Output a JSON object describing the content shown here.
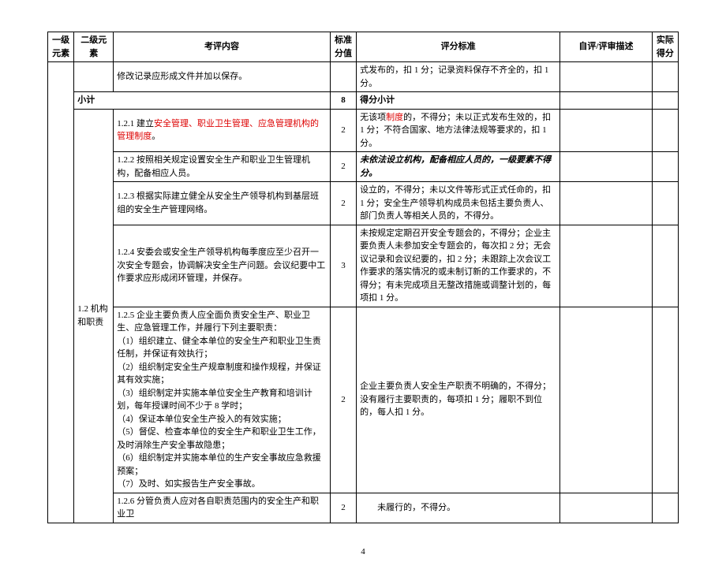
{
  "headers": {
    "l1": "一级元素",
    "l2": "二级元素",
    "content": "考评内容",
    "score": "标准分值",
    "criteria": "评分标准",
    "desc": "自评/评审描述",
    "actual": "实际得分"
  },
  "row_top": {
    "content": "修改记录应形成文件并加以保存。",
    "criteria": "式发布的，扣 1 分；记录资料保存不齐全的，扣 1 分。"
  },
  "subtotal": {
    "label": "小计",
    "score": "8",
    "criteria": "得分小计"
  },
  "l2_label": "1.2 机构和职责",
  "rows": [
    {
      "content_prefix": "1.2.1 建立",
      "content_red": "安全管理、职业卫生管理、应急管理机构的管理制度",
      "content_suffix": "。",
      "score": "2",
      "criteria_prefix": "无该项",
      "criteria_red": "制度",
      "criteria_suffix": "的，不得分；未以正式发布生效的，扣 1 分；不符合国家、地方法律法规等要求的，扣 1 分。"
    },
    {
      "content": "1.2.2 按照相关规定设置安全生产和职业卫生管理机构，配备相应人员。",
      "score": "2",
      "criteria_bold_italic": "未依法设立机构，配备相应人员的，一级要素不得分。"
    },
    {
      "content": "1.2.3 根据实际建立健全从安全生产领导机构到基层班组的安全生产管理网络。",
      "score": "2",
      "criteria": "设立的，不得分；未以文件等形式正式任命的，扣 1 分；安全生产领导机构成员未包括主要负责人、部门负责人等相关人员的，不得分。"
    },
    {
      "content": "1.2.4 安委会或安全生产领导机构每季度应至少召开一次安全专题会，协调解决安全生产问题。会议纪要中工作要求应形成闭环管理，并保存。",
      "score": "3",
      "criteria": "未按规定定期召开安全专题会的，不得分；企业主要负责人未参加安全专题会的，每次扣 2 分；无会议记录和会议纪要的，扣 2 分；未跟踪上次会议工作要求的落实情况的或未制订新的工作要求的，不得分；有未完成项且无整改措施或调整计划的，每项扣 1 分。"
    },
    {
      "content": "1.2.5 企业主要负责人应全面负责安全生产、职业卫生、应急管理工作，并履行下列主要职责：\n（1）组织建立、健全本单位的安全生产和职业卫生责任制，并保证有效执行；\n（2）组织制定安全生产规章制度和操作规程，并保证其有效实施；\n（3）组织制定并实施本单位安全生产教育和培训计划，每年授课时间不少于 8 学时；\n（4）保证本单位安全生产投入的有效实施；\n（5）督促、检查本单位的安全生产和职业卫生工作，及时消除生产安全事故隐患；\n（6）组织制定并实施本单位的生产安全事故应急救援预案；\n（7）及时、如实报告生产安全事故。",
      "score": "2",
      "criteria": "企业主要负责人安全生产职责不明确的，不得分；没有履行主要职责的，每项扣 1 分；履职不到位的，每人扣 1 分。"
    },
    {
      "content": "1.2.6 分管负责人应对各自职责范围内的安全生产和职业卫",
      "score": "2",
      "criteria_indent": "　　未履行的，不得分。"
    }
  ],
  "page_number": "4",
  "style": {
    "font_size_body": 11,
    "font_size_page": 11,
    "border_color": "#000000",
    "red_color": "#d00000",
    "bg_color": "#ffffff"
  }
}
